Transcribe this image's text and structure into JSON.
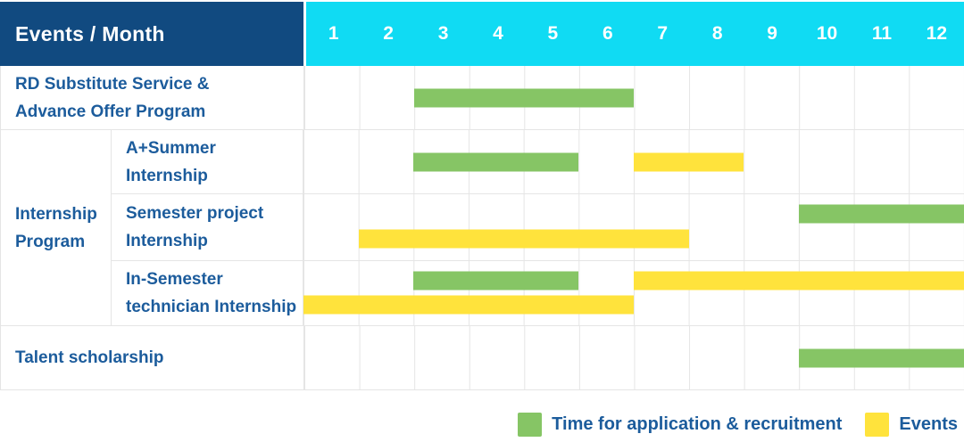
{
  "header": {
    "title": "Events / Month"
  },
  "group_column": {
    "label": "Internship\nProgram"
  },
  "colors": {
    "header_bg": "#114A80",
    "months_bg": "#10DBF3",
    "text_blue": "#1C5C9C",
    "application": "#86C565",
    "events": "#FFE33C",
    "grid_line": "#E5E5E5",
    "header_text": "#FFFFFF"
  },
  "chart_data": {
    "type": "bar",
    "subtype": "gantt",
    "title": "Events / Month",
    "x": {
      "label": "Month",
      "tick_labels": [
        "1",
        "2",
        "3",
        "4",
        "5",
        "6",
        "7",
        "8",
        "9",
        "10",
        "11",
        "12"
      ],
      "range": [
        1,
        12
      ],
      "grid": true
    },
    "legend_position": "bottom-right",
    "series_legend": [
      {
        "key": "application",
        "name": "Time for application & recruitment",
        "color": "#86C565"
      },
      {
        "key": "events",
        "name": "Events",
        "color": "#FFE33C"
      }
    ],
    "tasks": [
      {
        "label": "RD Substitute Service &\nAdvance Offer Program",
        "group": null,
        "bars": [
          {
            "series": "application",
            "start": 3,
            "end": 6,
            "line": "single"
          }
        ]
      },
      {
        "label": "A+Summer\nInternship",
        "group": "Internship Program",
        "bars": [
          {
            "series": "application",
            "start": 3,
            "end": 5,
            "line": "single"
          },
          {
            "series": "events",
            "start": 7,
            "end": 8,
            "line": "single"
          }
        ]
      },
      {
        "label": "Semester project\nInternship",
        "group": "Internship Program",
        "bars": [
          {
            "series": "application",
            "start": 10,
            "end": 12,
            "line": "upper"
          },
          {
            "series": "events",
            "start": 2,
            "end": 7,
            "line": "lower"
          }
        ]
      },
      {
        "label": "In-Semester\ntechnician Internship",
        "group": "Internship Program",
        "bars": [
          {
            "series": "application",
            "start": 3,
            "end": 5,
            "line": "upper"
          },
          {
            "series": "events",
            "start": 7,
            "end": 12,
            "line": "upper"
          },
          {
            "series": "events",
            "start": 1,
            "end": 6,
            "line": "lower"
          }
        ]
      },
      {
        "label": "Talent scholarship",
        "group": null,
        "bars": [
          {
            "series": "application",
            "start": 10,
            "end": 12,
            "line": "single"
          }
        ]
      }
    ]
  }
}
